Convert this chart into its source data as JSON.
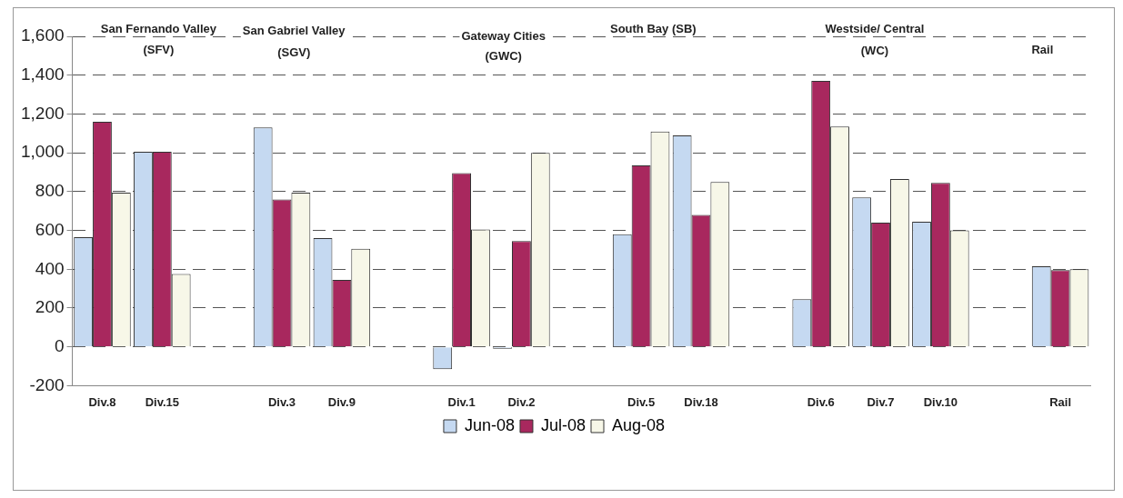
{
  "chart_data": {
    "type": "bar",
    "categories": [
      "Div.8",
      "Div.15",
      null,
      "Div.3",
      "Div.9",
      null,
      "Div.1",
      "Div.2",
      null,
      "Div.5",
      "Div.18",
      null,
      "Div.6",
      "Div.7",
      "Div.10",
      null,
      "Rail"
    ],
    "series": [
      {
        "name": "Jun-08",
        "color": "#c5d9f1",
        "values": [
          565,
          1005,
          null,
          1130,
          560,
          null,
          -115,
          -10,
          null,
          580,
          1090,
          null,
          245,
          770,
          645,
          null,
          415
        ]
      },
      {
        "name": "Jul-08",
        "color": "#a8285e",
        "values": [
          1160,
          1005,
          null,
          760,
          345,
          null,
          895,
          545,
          null,
          935,
          680,
          null,
          1370,
          640,
          845,
          null,
          395
        ]
      },
      {
        "name": "Aug-08",
        "color": "#f7f7e8",
        "values": [
          795,
          375,
          null,
          795,
          505,
          null,
          605,
          1000,
          null,
          1110,
          850,
          null,
          1135,
          865,
          600,
          null,
          400
        ]
      }
    ],
    "ylim": [
      -200,
      1600
    ],
    "yticks": [
      {
        "value": -200,
        "label": "-200"
      },
      {
        "value": 0,
        "label": "0"
      },
      {
        "value": 200,
        "label": "200"
      },
      {
        "value": 400,
        "label": "400"
      },
      {
        "value": 600,
        "label": "600"
      },
      {
        "value": 800,
        "label": "800"
      },
      {
        "value": 1000,
        "label": "1,000"
      },
      {
        "value": 1200,
        "label": "1,200"
      },
      {
        "value": 1400,
        "label": "1,400"
      },
      {
        "value": 1600,
        "label": "1,600"
      }
    ],
    "grid": "y",
    "legend": "bottom",
    "annotations": [
      "San Fernando Valley (SFV)",
      "San Gabriel Valley (SGV)",
      "Gateway Cities (GWC)",
      "South Bay (SB)",
      "Westside/ Central (WC)",
      "Rail"
    ]
  }
}
